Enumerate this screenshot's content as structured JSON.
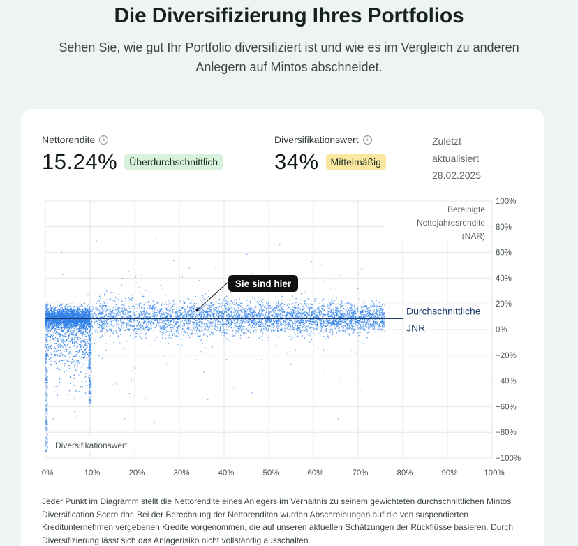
{
  "page": {
    "title": "Die Diversifizierung Ihres Portfolios",
    "subtitle": "Sehen Sie, wie gut Ihr Portfolio diversifiziert ist und wie es im Vergleich zu anderen Anlegern auf Mintos abschneidet."
  },
  "metrics": {
    "net_return": {
      "label": "Nettorendite",
      "value": "15.24%",
      "badge": "Überdurchschnittlich"
    },
    "diversification": {
      "label": "Diversifikationswert",
      "value": "34%",
      "badge": "Mittelmäßig"
    },
    "updated": {
      "line1": "Zuletzt",
      "line2": "aktualisiert",
      "date": "28.02.2025"
    },
    "info_icon": "info-icon"
  },
  "chart_data": {
    "type": "scatter",
    "title": "",
    "xlabel": "Diversifikationswert",
    "ylabel": "Bereinigte Nettojahresrendite (NAR)",
    "xlim": [
      0,
      100
    ],
    "ylim": [
      -100,
      100
    ],
    "x_ticks": [
      "0%",
      "10%",
      "20%",
      "30%",
      "40%",
      "50%",
      "60%",
      "70%",
      "80%",
      "90%",
      "100%"
    ],
    "y_ticks": [
      "100%",
      "80%",
      "60%",
      "40%",
      "20%",
      "0%",
      "−20%",
      "−40%",
      "−60%",
      "−80%",
      "−100%"
    ],
    "grid": true,
    "point_color": "#2f80e8",
    "user_point": {
      "x": 34,
      "y": 15.24,
      "label": "Sie sind hier"
    },
    "average_line": {
      "y": 8.5,
      "x_end": 80,
      "label_line1": "Durchschnittliche",
      "label_line2": "JNR"
    },
    "distribution_note": "Dichte Punktwolke von mehreren tausend Anlegern, konzentriert bei 0–10% Diversifikationswert und 0–20% Rendite, ausdünnend bis ca. 75% Diversifikationswert"
  },
  "footnote": "Jeder Punkt im Diagramm stellt die Nettorendite eines Anlegers im Verhältnis zu seinem gewichteten durchschnittlichen Mintos Diversification Score dar. Bei der Berechnung der Nettorenditen wurden Abschreibungen auf die von suspendierten Kreditunternehmen vergebenen Kredite vorgenommen, die auf unseren aktuellen Schätzungen der Rückflüsse basieren. Durch Diversifizierung lässt sich das Anlagerisiko nicht vollständig ausschalten."
}
